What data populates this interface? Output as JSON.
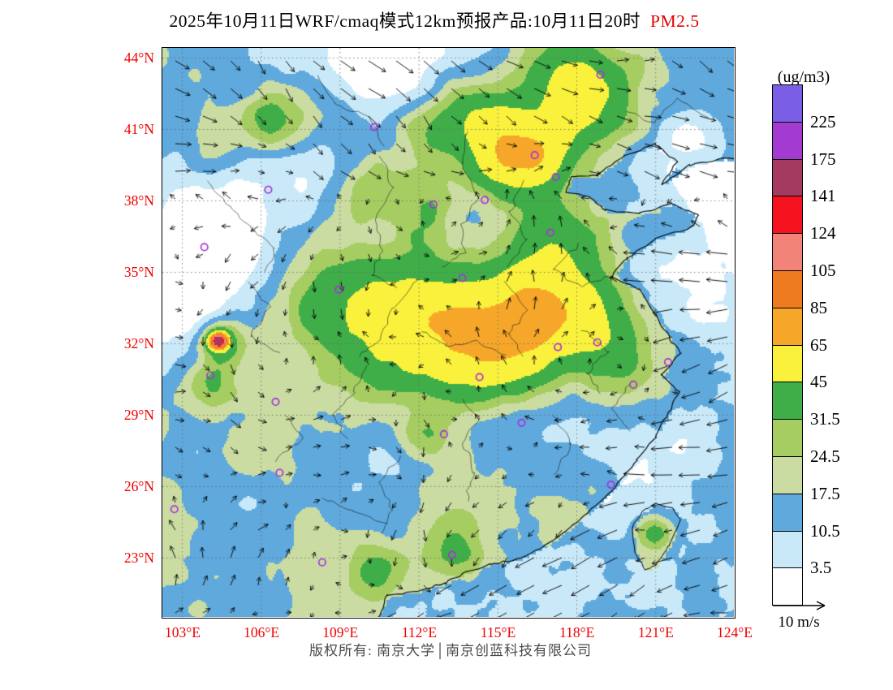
{
  "title": {
    "main": "2025年10月11日WRF/cmaq模式12km预报产品:10月11日20时",
    "pollutant": "PM2.5"
  },
  "colorbar": {
    "units": "(ug/m3)",
    "labels": [
      "225",
      "175",
      "141",
      "124",
      "105",
      "85",
      "65",
      "45",
      "31.5",
      "24.5",
      "17.5",
      "10.5",
      "3.5"
    ],
    "colors_top_to_bottom": [
      "#7A5FE6",
      "#A43BD0",
      "#A43A5F",
      "#F4121E",
      "#F28379",
      "#EF7B20",
      "#F6A72A",
      "#F9F13C",
      "#3FAE49",
      "#A6CD62",
      "#CADCA2",
      "#5FA9DD",
      "#C9E9F9",
      "#FFFFFF"
    ]
  },
  "axes": {
    "lat": [
      "44°N",
      "41°N",
      "38°N",
      "35°N",
      "32°N",
      "29°N",
      "26°N",
      "23°N"
    ],
    "lon": [
      "103°E",
      "106°E",
      "109°E",
      "112°E",
      "115°E",
      "118°E",
      "121°E",
      "124°E"
    ],
    "label_color": "#F10000"
  },
  "wind_scale": {
    "label": "10 m/s"
  },
  "footer": {
    "text": "版权所有: 南京大学│南京创蓝科技有限公司"
  },
  "map": {
    "marker_color": "#A832D8",
    "levels": [
      3.5,
      10.5,
      17.5,
      24.5,
      31.5,
      45,
      65,
      85,
      105,
      124,
      141,
      175,
      225
    ],
    "city_markers": [
      [
        118.9,
        43.3
      ],
      [
        110.3,
        41.1
      ],
      [
        116.4,
        39.92
      ],
      [
        117.2,
        39.0
      ],
      [
        114.5,
        38.04
      ],
      [
        112.55,
        37.85
      ],
      [
        106.27,
        38.47
      ],
      [
        103.84,
        36.06
      ],
      [
        117.0,
        36.67
      ],
      [
        113.65,
        34.76
      ],
      [
        108.95,
        34.27
      ],
      [
        117.28,
        31.86
      ],
      [
        118.78,
        32.06
      ],
      [
        121.47,
        31.23
      ],
      [
        114.3,
        30.6
      ],
      [
        120.15,
        30.28
      ],
      [
        104.07,
        30.67
      ],
      [
        106.55,
        29.56
      ],
      [
        112.95,
        28.2
      ],
      [
        115.9,
        28.68
      ],
      [
        106.7,
        26.58
      ],
      [
        119.3,
        26.08
      ],
      [
        102.7,
        25.05
      ],
      [
        113.26,
        23.13
      ],
      [
        108.32,
        22.82
      ]
    ]
  }
}
